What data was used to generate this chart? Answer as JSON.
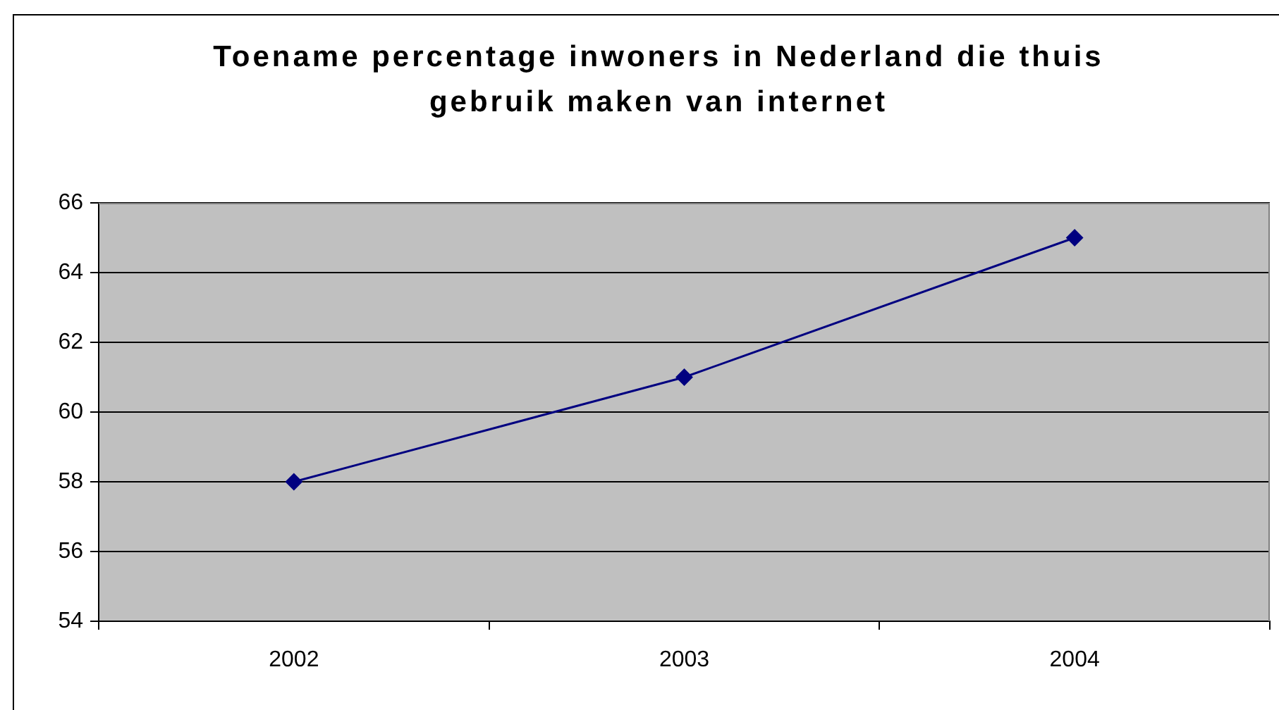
{
  "chart_data": {
    "type": "line",
    "title": "Toename percentage inwoners in Nederland die thuis gebruik maken van internet",
    "categories": [
      "2002",
      "2003",
      "2004"
    ],
    "values": [
      58,
      61,
      65
    ],
    "color": "#000080",
    "ylim": [
      54,
      66
    ],
    "yticks": [
      54,
      56,
      58,
      60,
      62,
      64,
      66
    ],
    "grid": "y",
    "marker": "diamond",
    "line_style": "solid"
  }
}
